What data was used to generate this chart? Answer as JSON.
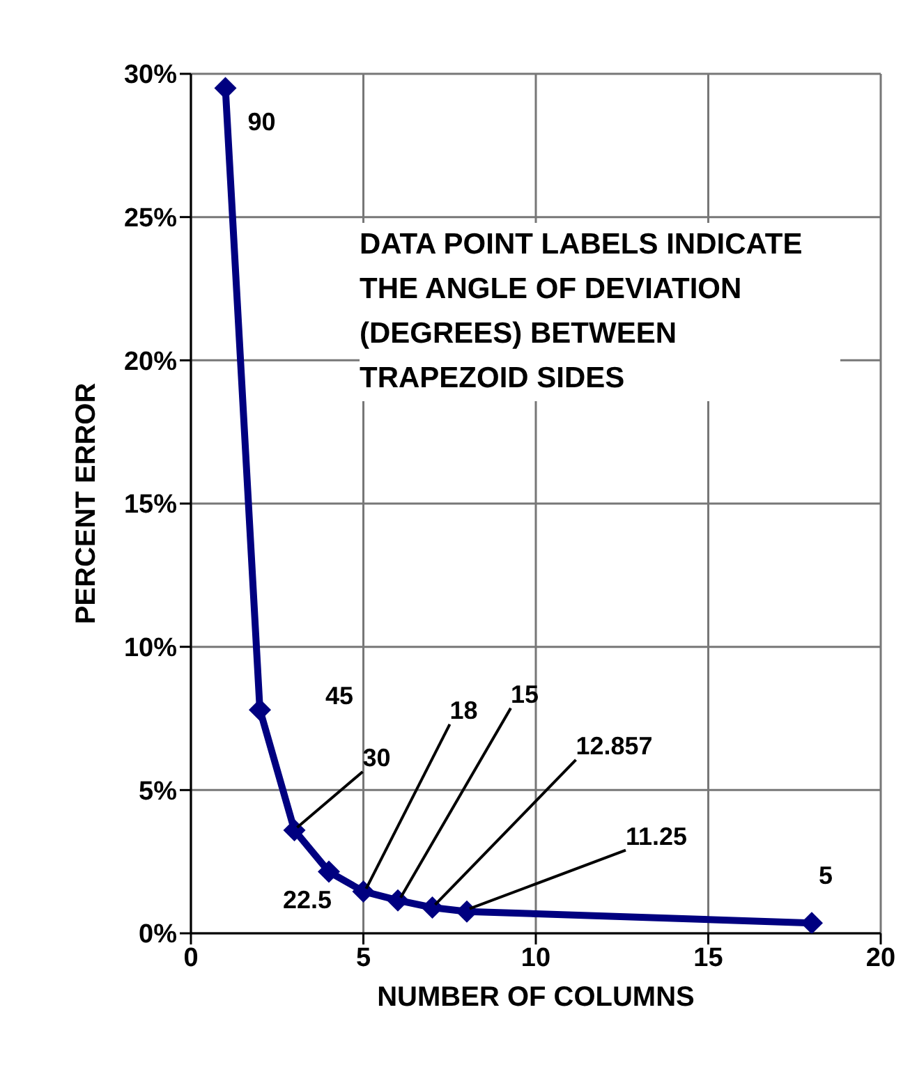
{
  "chart_data": {
    "type": "line",
    "xlabel": "NUMBER OF COLUMNS",
    "ylabel": "PERCENT ERROR",
    "x": [
      1,
      2,
      3,
      4,
      5,
      6,
      7,
      8,
      18
    ],
    "series": [
      {
        "color": "#000080",
        "values": [
          29.5,
          7.8,
          3.6,
          2.15,
          1.46,
          1.15,
          0.9,
          0.76,
          0.36
        ]
      }
    ],
    "xlim": [
      0,
      20
    ],
    "xticks": [
      0,
      5,
      10,
      15,
      20
    ],
    "ylim": [
      0,
      30
    ],
    "yticks": [
      {
        "value": 0,
        "label": "0%"
      },
      {
        "value": 5,
        "label": "5%"
      },
      {
        "value": 10,
        "label": "10%"
      },
      {
        "value": 15,
        "label": "15%"
      },
      {
        "value": 20,
        "label": "20%"
      },
      {
        "value": 25,
        "label": "25%"
      },
      {
        "value": 30,
        "label": "30%"
      }
    ],
    "grid": true,
    "legend": false,
    "marker": "diamond",
    "line_style": "solid",
    "annotations": [
      {
        "text": "90",
        "x": 1,
        "y": 29.5
      },
      {
        "text": "45",
        "x": 2,
        "y": 7.8
      },
      {
        "text": "30",
        "x": 3,
        "y": 3.6
      },
      {
        "text": "22.5",
        "x": 4,
        "y": 2.15
      },
      {
        "text": "18",
        "x": 5,
        "y": 1.46
      },
      {
        "text": "15",
        "x": 6,
        "y": 1.15
      },
      {
        "text": "12.857",
        "x": 7,
        "y": 0.9
      },
      {
        "text": "11.25",
        "x": 8,
        "y": 0.76
      },
      {
        "text": "5",
        "x": 18,
        "y": 0.36
      },
      "DATA POINT LABELS INDICATE THE ANGLE OF DEVIATION (DEGREES) BETWEEN TRAPEZOID SIDES"
    ]
  }
}
